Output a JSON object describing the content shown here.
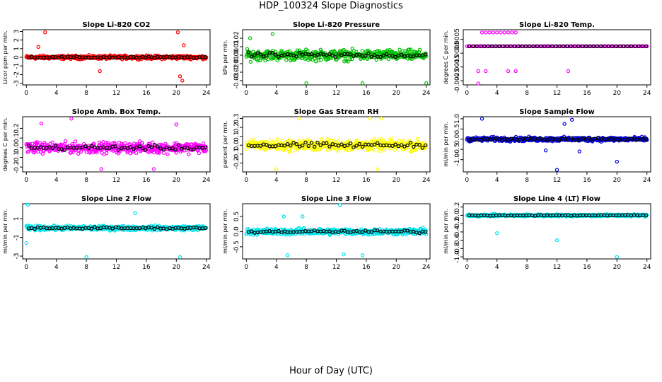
{
  "title": "HDP_100324  Slope Diagnostics",
  "xlabel": "Hour of Day (UTC)",
  "chart_data": [
    {
      "type": "scatter",
      "title": "Slope Li-820 CO2",
      "ylabel": "Licor ppm per min.",
      "color": "#ff0000",
      "xlim": [
        -0.5,
        24.5
      ],
      "xticks": [
        0,
        4,
        8,
        12,
        16,
        20,
        24
      ],
      "ylim": [
        -3.2,
        3.2
      ],
      "yticks": [
        -3,
        -2,
        -1,
        0,
        1,
        2,
        3
      ],
      "yticklabels": [
        "-3",
        "-2",
        "-1",
        "0",
        "1",
        "2",
        "3"
      ],
      "spread": 0.3,
      "outliers": [
        [
          2.5,
          2.9
        ],
        [
          20.2,
          2.9
        ],
        [
          9.8,
          -1.6
        ],
        [
          20.5,
          -2.2
        ],
        [
          20.8,
          -2.7
        ],
        [
          1.6,
          1.2
        ],
        [
          21.0,
          1.4
        ]
      ]
    },
    {
      "type": "scatter",
      "title": "Slope Li-820 Pressure",
      "ylabel": "kPa per min.",
      "color": "#00c000",
      "xlim": [
        -0.5,
        24.5
      ],
      "xticks": [
        0,
        4,
        8,
        12,
        16,
        20,
        24
      ],
      "ylim": [
        -0.035,
        0.03
      ],
      "yticks": [
        -0.03,
        -0.02,
        -0.01,
        0.0,
        0.01,
        0.02
      ],
      "yticklabels": [
        "-0.03",
        "-0.02",
        "-0.01",
        "0.00",
        "0.01",
        "0.02"
      ],
      "spread": 0.009,
      "outliers": [
        [
          8.0,
          -0.033
        ],
        [
          15.5,
          -0.033
        ],
        [
          24.0,
          -0.033
        ],
        [
          3.5,
          0.025
        ],
        [
          0.5,
          0.02
        ]
      ]
    },
    {
      "type": "scatter",
      "title": "Slope Li-820 Temp.",
      "ylabel": "degrees C per min.",
      "color": "#ff00ff",
      "xlim": [
        -0.5,
        24.5
      ],
      "xticks": [
        0,
        4,
        8,
        12,
        16,
        20,
        24
      ],
      "ylim": [
        -0.0028,
        0.0012
      ],
      "yticks": [
        -0.0025,
        -0.0015,
        -0.0005,
        0.0005
      ],
      "yticklabels": [
        "-0.0025",
        "-0.0015",
        "-0.0005",
        "0.0005"
      ],
      "spread": 0.0,
      "outliers": [
        [
          2.0,
          0.001
        ],
        [
          2.5,
          0.001
        ],
        [
          3.0,
          0.001
        ],
        [
          3.5,
          0.001
        ],
        [
          4.0,
          0.001
        ],
        [
          4.5,
          0.001
        ],
        [
          5.0,
          0.001
        ],
        [
          5.5,
          0.001
        ],
        [
          6.0,
          0.001
        ],
        [
          6.5,
          0.001
        ],
        [
          2.5,
          -0.0018
        ],
        [
          1.5,
          -0.0018
        ],
        [
          5.5,
          -0.0018
        ],
        [
          6.5,
          -0.0018
        ],
        [
          13.5,
          -0.0018
        ],
        [
          1.5,
          -0.0027
        ]
      ]
    },
    {
      "type": "scatter",
      "title": "Slope Amb. Box Temp.",
      "ylabel": "degrees C per min.",
      "color": "#ff00ff",
      "xlim": [
        -0.5,
        24.5
      ],
      "xticks": [
        0,
        4,
        8,
        12,
        16,
        20,
        24
      ],
      "ylim": [
        -0.25,
        0.32
      ],
      "yticks": [
        -0.2,
        -0.1,
        0.0,
        0.1,
        0.2
      ],
      "yticklabels": [
        "-0.2",
        "-0.1",
        "0.0",
        "0.1",
        "0.2"
      ],
      "spread": 0.08,
      "outliers": [
        [
          6.0,
          0.3
        ],
        [
          2.0,
          0.25
        ],
        [
          20.0,
          0.24
        ],
        [
          17.0,
          -0.22
        ],
        [
          10.0,
          -0.22
        ]
      ]
    },
    {
      "type": "scatter",
      "title": "Slope Gas Stream RH",
      "ylabel": "percent per min.",
      "color": "#ffff00",
      "xlim": [
        -0.5,
        24.5
      ],
      "xticks": [
        0,
        4,
        8,
        12,
        16,
        20,
        24
      ],
      "ylim": [
        -0.3,
        0.32
      ],
      "yticks": [
        -0.2,
        -0.1,
        0.0,
        0.1,
        0.2,
        0.3
      ],
      "yticklabels": [
        "-0.2",
        "-0.1",
        "0.0",
        "0.1",
        "0.2",
        "0.3"
      ],
      "spread": 0.09,
      "outliers": [
        [
          7.0,
          0.3
        ],
        [
          16.5,
          0.3
        ],
        [
          18.0,
          0.3
        ],
        [
          4.0,
          -0.27
        ],
        [
          17.5,
          -0.27
        ]
      ]
    },
    {
      "type": "scatter",
      "title": "Slope Sample Flow",
      "ylabel": "ml/min per min.",
      "color": "#0000dd",
      "xlim": [
        -0.5,
        24.5
      ],
      "xticks": [
        0,
        4,
        8,
        12,
        16,
        20,
        24
      ],
      "ylim": [
        -1.6,
        1.1
      ],
      "yticks": [
        -1.0,
        -0.5,
        0.0,
        0.5,
        1.0
      ],
      "yticklabels": [
        "-1.0",
        "-0.5",
        "0.0",
        "0.5",
        "1.0"
      ],
      "spread": 0.15,
      "outliers": [
        [
          12.0,
          -1.5
        ],
        [
          2.0,
          1.0
        ],
        [
          20.0,
          -1.1
        ],
        [
          14.0,
          0.95
        ],
        [
          13.0,
          0.75
        ],
        [
          10.5,
          -0.55
        ],
        [
          15.0,
          -0.6
        ]
      ]
    },
    {
      "type": "scatter",
      "title": "Slope Line 2 Flow",
      "ylabel": "ml/min per min.",
      "color": "#00e5ee",
      "xlim": [
        -0.5,
        24.5
      ],
      "xticks": [
        0,
        4,
        8,
        12,
        16,
        20,
        24
      ],
      "ylim": [
        -3.3,
        2.6
      ],
      "yticks": [
        -3,
        -1,
        1
      ],
      "yticklabels": [
        "-3",
        "-1",
        "1"
      ],
      "spread": 0.35,
      "outliers": [
        [
          0.2,
          2.5
        ],
        [
          8.0,
          -3.1
        ],
        [
          20.5,
          -3.1
        ],
        [
          0.0,
          -1.6
        ],
        [
          14.5,
          1.6
        ]
      ]
    },
    {
      "type": "scatter",
      "title": "Slope Line 3 Flow",
      "ylabel": "ml/min per min.",
      "color": "#00e5ee",
      "xlim": [
        -0.5,
        24.5
      ],
      "xticks": [
        0,
        4,
        8,
        12,
        16,
        20,
        24
      ],
      "ylim": [
        -0.9,
        0.92
      ],
      "yticks": [
        -0.5,
        0.0,
        0.5
      ],
      "yticklabels": [
        "-0.5",
        "0.0",
        "0.5"
      ],
      "spread": 0.15,
      "outliers": [
        [
          12.5,
          0.88
        ],
        [
          5.5,
          -0.78
        ],
        [
          13.0,
          -0.75
        ],
        [
          15.5,
          -0.78
        ],
        [
          5.0,
          0.5
        ],
        [
          7.5,
          0.5
        ]
      ]
    },
    {
      "type": "scatter",
      "title": "Slope Line 4 (LT) Flow",
      "ylabel": "ml/min per min.",
      "color": "#00e5ee",
      "xlim": [
        -0.5,
        24.5
      ],
      "xticks": [
        0,
        4,
        8,
        12,
        16,
        20,
        24
      ],
      "ylim": [
        -1.05,
        0.28
      ],
      "yticks": [
        -1.0,
        -0.8,
        -0.6,
        -0.4,
        -0.2,
        0.0,
        0.2
      ],
      "yticklabels": [
        "-1.0",
        "-0.8",
        "-0.6",
        "-0.4",
        "-0.2",
        "0.0",
        "0.2"
      ],
      "spread": 0.04,
      "outliers": [
        [
          4.0,
          -0.43
        ],
        [
          12.0,
          -0.6
        ],
        [
          20.0,
          -1.0
        ]
      ]
    }
  ]
}
